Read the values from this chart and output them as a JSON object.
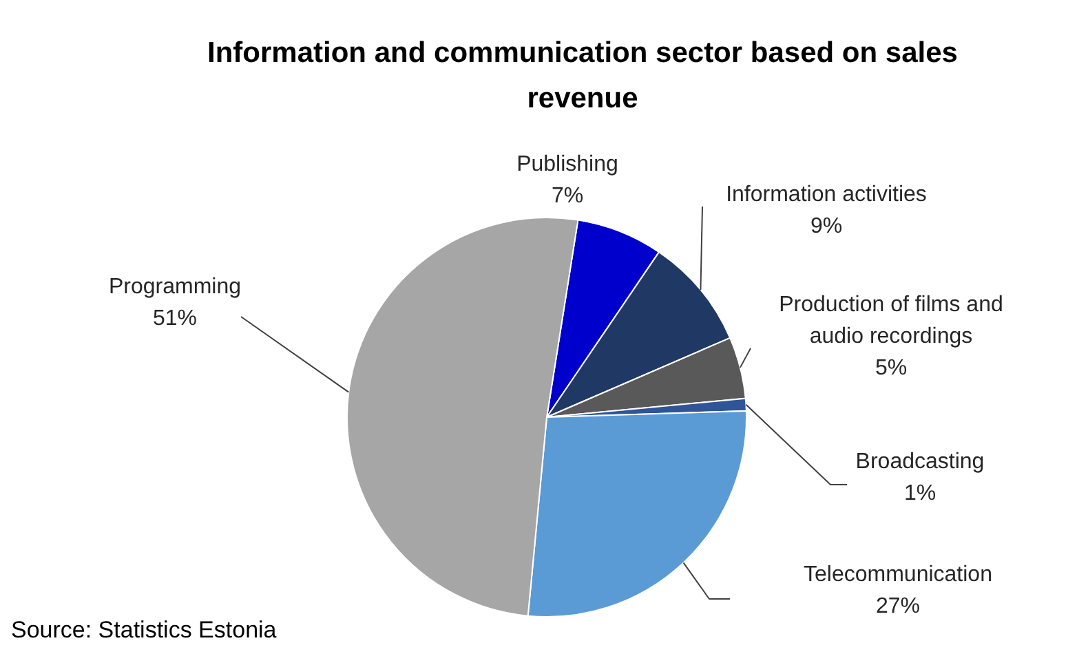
{
  "chart_data": {
    "type": "pie",
    "title": "Information and communication sector based on sales revenue",
    "categories": [
      "Publishing",
      "Information activities",
      "Production of films and audio recordings",
      "Broadcasting",
      "Telecommunication",
      "Programming"
    ],
    "values": [
      7,
      9,
      5,
      1,
      27,
      51
    ],
    "colors": [
      "#0000cc",
      "#1f3864",
      "#595959",
      "#2f5597",
      "#5b9bd5",
      "#a6a6a6"
    ],
    "value_labels": [
      "7%",
      "9%",
      "5%",
      "1%",
      "27%",
      "51%"
    ],
    "annotations": [
      "Source: Statistics Estonia"
    ]
  }
}
